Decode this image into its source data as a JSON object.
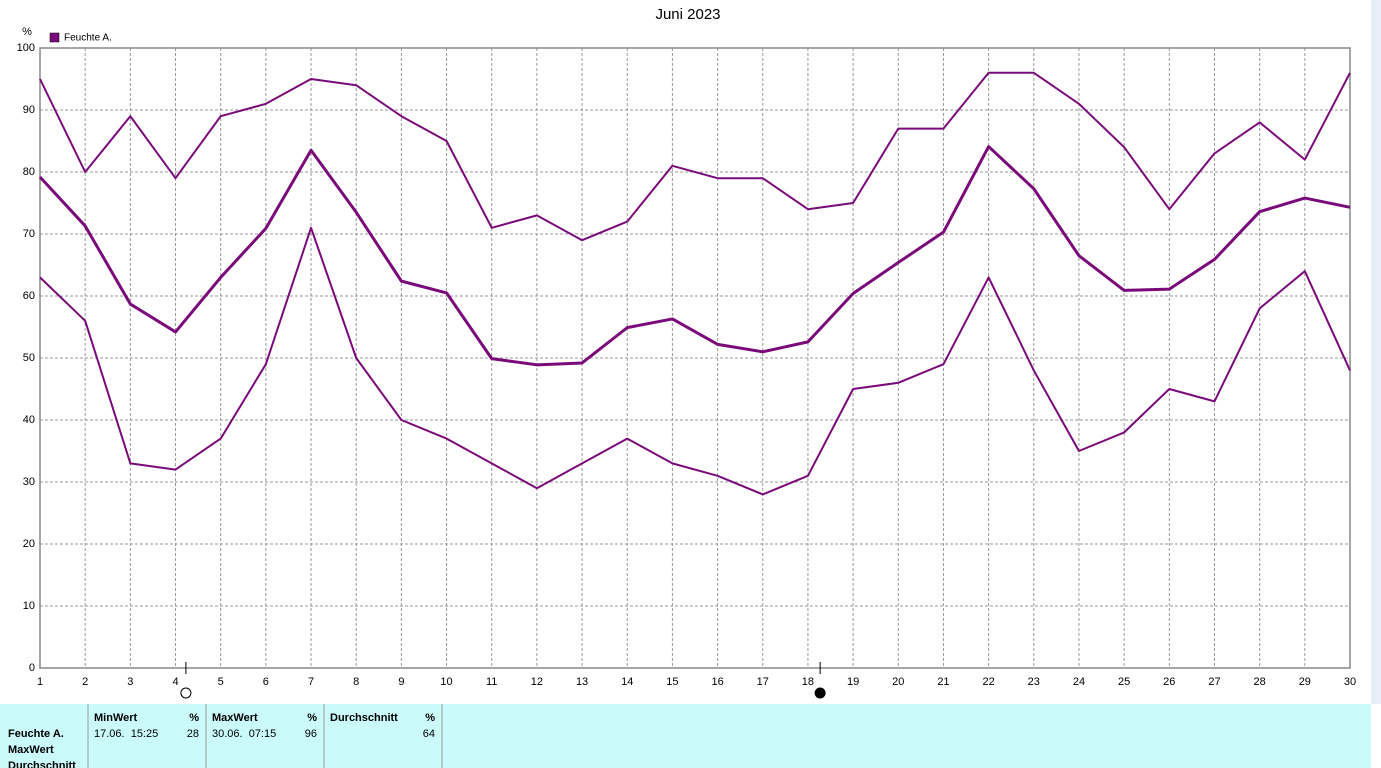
{
  "chart_data": {
    "type": "line",
    "title": "Juni 2023",
    "y_label": "%",
    "legend": {
      "label": "Feuchte A.",
      "color": "#7a0a7a"
    },
    "x": [
      1,
      2,
      3,
      4,
      5,
      6,
      7,
      8,
      9,
      10,
      11,
      12,
      13,
      14,
      15,
      16,
      17,
      18,
      19,
      20,
      21,
      22,
      23,
      24,
      25,
      26,
      27,
      28,
      29,
      30
    ],
    "xlim": [
      1,
      30
    ],
    "ylim": [
      0,
      100
    ],
    "yticks": [
      0,
      10,
      20,
      30,
      40,
      50,
      60,
      70,
      80,
      90,
      100
    ],
    "grid": true,
    "series": [
      {
        "color": "#7a0a7a",
        "values": [
          95,
          80,
          89,
          79,
          89,
          91,
          95,
          94,
          89,
          85,
          71,
          73,
          69,
          72,
          81,
          79,
          79,
          74,
          75,
          87,
          87,
          96,
          96,
          91,
          84,
          74,
          83,
          88,
          82,
          96
        ]
      },
      {
        "color": "#7a0a7a",
        "values": [
          79.2,
          71.3,
          58.7,
          54.2,
          63,
          70.9,
          83.5,
          73.5,
          62.4,
          60.5,
          49.9,
          48.9,
          49.2,
          54.9,
          56.3,
          52.2,
          51,
          52.6,
          60.4,
          65.4,
          70.3,
          84.1,
          77.3,
          66.5,
          60.9,
          61.1,
          65.9,
          73.6,
          75.8,
          74.3
        ]
      },
      {
        "color": "#7a0a7a",
        "values": [
          63,
          56,
          33,
          32,
          37,
          49,
          71,
          50,
          40,
          37,
          33,
          29,
          33,
          37,
          33,
          31,
          28,
          31,
          45,
          46,
          49,
          63,
          48,
          35,
          38,
          45,
          43,
          58,
          64,
          48
        ]
      }
    ],
    "moon_phases": [
      {
        "x": 4.23,
        "fill": "none"
      },
      {
        "x": 18.27,
        "fill": "#000000"
      }
    ]
  },
  "table": {
    "row_labels": [
      "Feuchte A.",
      "MaxWert",
      "Durchschnitt"
    ],
    "columns": [
      {
        "header": "MinWert",
        "unit": "%",
        "time": "17.06.  15:25",
        "value": "28"
      },
      {
        "header": "MaxWert",
        "unit": "%",
        "time": "30.06.  07:15",
        "value": "96"
      },
      {
        "header": "Durchschnitt",
        "unit": "%",
        "value": "64"
      }
    ]
  }
}
